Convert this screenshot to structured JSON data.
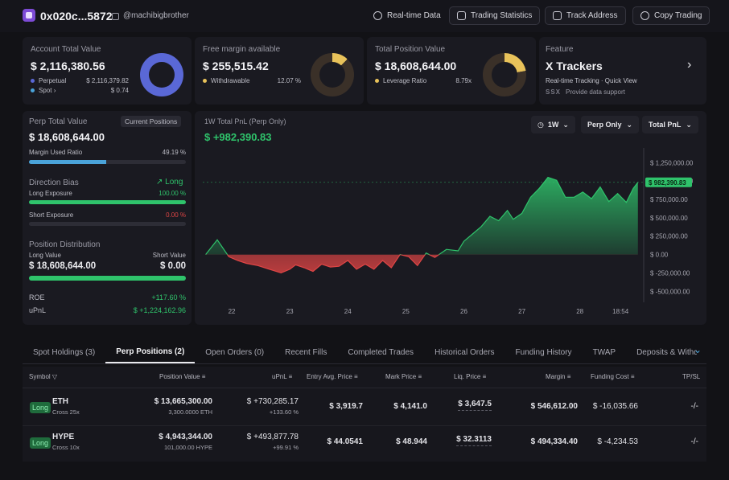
{
  "header": {
    "address": "0x020c...5872",
    "username": "@machibigbrother",
    "buttons": [
      {
        "label": "Real-time Data",
        "icon": "refresh-icon"
      },
      {
        "label": "Trading Statistics",
        "icon": "stats-icon"
      },
      {
        "label": "Track Address",
        "icon": "monitor-icon"
      },
      {
        "label": "Copy Trading",
        "icon": "copy-trade-icon"
      }
    ]
  },
  "account": {
    "title": "Account Total Value",
    "value": "$ 2,116,380.56",
    "perp_label": "Perpetual",
    "perp_value": "$ 2,116,379.82",
    "spot_label": "Spot",
    "spot_value": "$ 0.74"
  },
  "margin": {
    "title": "Free margin available",
    "value": "$ 255,515.42",
    "withdrawable_label": "Withdrawable",
    "withdrawable_pct": "12.07 %",
    "fraction": 0.1207
  },
  "position": {
    "title": "Total Position Value",
    "value": "$ 18,608,644.00",
    "leverage_label": "Leverage Ratio",
    "leverage_value": "8.79x",
    "fraction": 0.22
  },
  "feature": {
    "title": "Feature",
    "name": "X Trackers",
    "subtitle": "Real-time Tracking · Quick View",
    "provider_logo": "SSX",
    "provider_text": "Provide data support"
  },
  "perp_panel": {
    "title": "Perp Total Value",
    "current_btn": "Current Positions",
    "value": "$ 18,608,644.00",
    "margin_used_label": "Margin Used Ratio",
    "margin_used_value": "49.19 %",
    "margin_used_fraction": 0.4919,
    "bias_title": "Direction Bias",
    "bias_value": "Long",
    "long_label": "Long Exposure",
    "long_value": "100.00 %",
    "long_fraction": 1.0,
    "short_label": "Short Exposure",
    "short_value": "0.00 %",
    "short_fraction": 0.0,
    "dist_title": "Position Distribution",
    "dist_long_label": "Long Value",
    "dist_short_label": "Short Value",
    "dist_long_value": "$ 18,608,644.00",
    "dist_short_value": "$ 0.00",
    "dist_long_fraction": 1.0,
    "roe_label": "ROE",
    "roe_value": "+117.60 %",
    "upnl_label": "uPnL",
    "upnl_value": "$ +1,224,162.96"
  },
  "pnl_chart": {
    "title": "1W Total PnL (Perp Only)",
    "value": "$ +982,390.83",
    "range_select": "1W",
    "mode_select": "Perp Only",
    "metric_select": "Total PnL"
  },
  "chart_data": {
    "type": "area",
    "title": "1W Total PnL (Perp Only)",
    "xlabel": "",
    "ylabel": "",
    "x_tick_labels": [
      "22",
      "23",
      "24",
      "25",
      "26",
      "27",
      "28",
      "18:54"
    ],
    "x_ticks": [
      0.5,
      1.5,
      2.5,
      3.5,
      4.5,
      5.5,
      6.5,
      7.2
    ],
    "y_tick_labels": [
      "$ 1,250,000.00",
      "$ 1,000,000.00",
      "$ 750,000.00",
      "$ 500,000.00",
      "$ 250,000.00",
      "$ 0.00",
      "$ -250,000.00",
      "$ -500,000.00"
    ],
    "y_ticks": [
      1250000,
      1000000,
      750000,
      500000,
      250000,
      0,
      -250000,
      -500000
    ],
    "ylim": [
      -650000,
      1450000
    ],
    "xlim": [
      0,
      7.6
    ],
    "current_label": "$ 982,390.83",
    "current_value": 982390.83,
    "x": [
      0.05,
      0.25,
      0.45,
      0.6,
      0.75,
      0.95,
      1.15,
      1.35,
      1.5,
      1.6,
      1.75,
      1.9,
      2.05,
      2.2,
      2.35,
      2.5,
      2.65,
      2.8,
      2.95,
      3.1,
      3.25,
      3.4,
      3.55,
      3.7,
      3.85,
      4.0,
      4.2,
      4.4,
      4.5,
      4.65,
      4.8,
      4.95,
      5.1,
      5.25,
      5.35,
      5.5,
      5.65,
      5.8,
      5.95,
      6.1,
      6.25,
      6.4,
      6.55,
      6.7,
      6.85,
      7.0,
      7.15,
      7.3,
      7.42,
      7.5
    ],
    "values": [
      0,
      200000,
      -30000,
      -80000,
      -120000,
      -150000,
      -200000,
      -250000,
      -200000,
      -140000,
      -180000,
      -230000,
      -130000,
      -170000,
      -160000,
      -80000,
      -200000,
      -130000,
      -200000,
      -80000,
      -180000,
      0,
      -30000,
      -150000,
      20000,
      -40000,
      70000,
      50000,
      180000,
      280000,
      380000,
      520000,
      460000,
      600000,
      480000,
      560000,
      780000,
      900000,
      1050000,
      1010000,
      780000,
      780000,
      850000,
      760000,
      920000,
      720000,
      830000,
      710000,
      900000,
      982390
    ]
  },
  "tabs": [
    "Spot Holdings (3)",
    "Perp Positions (2)",
    "Open Orders (0)",
    "Recent Fills",
    "Completed Trades",
    "Historical Orders",
    "Funding History",
    "TWAP",
    "Deposits & Withdraw"
  ],
  "active_tab": 1,
  "table": {
    "headers": [
      "Symbol",
      "Position Value",
      "uPnL",
      "Entry Avg. Price",
      "Mark Price",
      "Liq. Price",
      "Margin",
      "Funding Cost",
      "TP/SL"
    ],
    "rows": [
      {
        "side": "Long",
        "symbol": "ETH",
        "mode": "Cross 25x",
        "pos_value": "$ 13,665,300.00",
        "pos_size": "3,300.0000 ETH",
        "upnl": "$ +730,285.17",
        "upnl_pct": "+133.60 %",
        "entry": "$ 3,919.7",
        "mark": "$ 4,141.0",
        "liq": "$ 3,647.5",
        "margin": "$ 546,612.00",
        "funding": "$ -16,035.66",
        "tpsl": "-/-"
      },
      {
        "side": "Long",
        "symbol": "HYPE",
        "mode": "Cross 10x",
        "pos_value": "$ 4,943,344.00",
        "pos_size": "101,000.00 HYPE",
        "upnl": "$ +493,877.78",
        "upnl_pct": "+99.91 %",
        "entry": "$ 44.0541",
        "mark": "$ 48.944",
        "liq": "$ 32.3113",
        "margin": "$ 494,334.40",
        "funding": "$ -4,234.53",
        "tpsl": "-/-"
      }
    ]
  },
  "colors": {
    "accent_green": "#2fc36b",
    "loss_red": "#e04545",
    "donut_blue": "#5a68d6",
    "donut_gold": "#e8c25a",
    "bar_blue": "#4aa3d9"
  }
}
